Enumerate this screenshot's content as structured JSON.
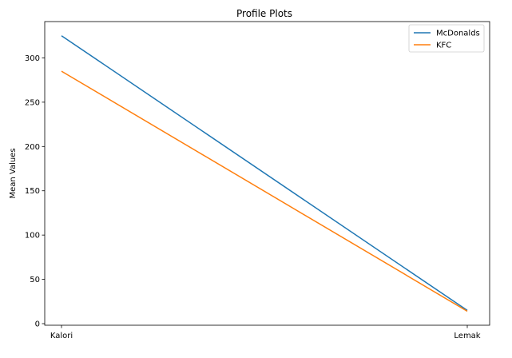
{
  "chart_data": {
    "type": "line",
    "title": "Profile Plots",
    "xlabel": "",
    "ylabel": "Mean Values",
    "categories": [
      "Kalori",
      "Lemak"
    ],
    "yticks": [
      0,
      50,
      100,
      150,
      200,
      250,
      300
    ],
    "ylim": [
      -1.8,
      341
    ],
    "grid": false,
    "legend_position": "top-right",
    "series": [
      {
        "name": "McDonalds",
        "color": "#1f77b4",
        "values": [
          325,
          15
        ]
      },
      {
        "name": "KFC",
        "color": "#ff7f0e",
        "values": [
          285,
          14
        ]
      }
    ]
  }
}
